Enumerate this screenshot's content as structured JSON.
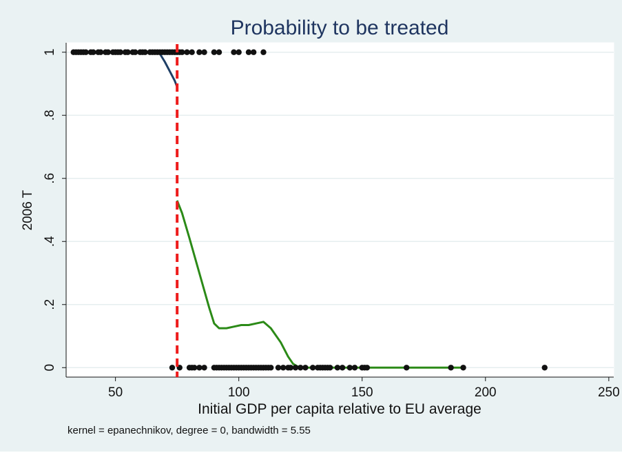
{
  "chart_data": {
    "type": "scatter",
    "title": "Probability to be treated",
    "xlabel": "Initial GDP per capita relative to EU average",
    "ylabel": "2006 T",
    "note": "kernel = epanechnikov, degree = 0, bandwidth = 5.55",
    "xlim": [
      30,
      252
    ],
    "ylim": [
      -0.03,
      1.03
    ],
    "xticks": [
      50,
      100,
      150,
      200,
      250
    ],
    "yticks": [
      0,
      0.2,
      0.4,
      0.6,
      0.8,
      1
    ],
    "ytick_labels": [
      "0",
      ".2",
      ".4",
      ".6",
      ".8",
      "1"
    ],
    "grid": true,
    "cutoff": 75,
    "colors": {
      "background": "#eaf2f3",
      "plot": "#ffffff",
      "grid": "#e6eeef",
      "points": "#111111",
      "left_fit": "#1f3f66",
      "right_fit": "#2b8a17",
      "cutoff_line": "#ee1c1c",
      "title": "#1f3560"
    },
    "series": [
      {
        "kind": "points",
        "x": [
          33,
          34,
          35,
          36,
          37,
          38,
          40,
          41,
          43,
          44,
          46,
          47,
          49,
          50,
          51,
          52,
          54,
          55,
          57,
          58,
          60,
          61,
          62,
          64,
          65,
          66,
          67,
          68,
          69,
          70,
          71,
          72,
          73,
          74,
          75,
          76,
          77,
          79,
          81,
          84,
          86,
          90,
          92,
          98,
          100,
          104,
          106,
          110
        ],
        "y": [
          1,
          1,
          1,
          1,
          1,
          1,
          1,
          1,
          1,
          1,
          1,
          1,
          1,
          1,
          1,
          1,
          1,
          1,
          1,
          1,
          1,
          1,
          1,
          1,
          1,
          1,
          1,
          1,
          1,
          1,
          1,
          1,
          1,
          1,
          1,
          1,
          1,
          1,
          1,
          1,
          1,
          1,
          1,
          1,
          1,
          1,
          1,
          1
        ]
      },
      {
        "kind": "points",
        "x": [
          73,
          76,
          80,
          81,
          82,
          84,
          86,
          90,
          91,
          92,
          93,
          94,
          95,
          96,
          97,
          98,
          99,
          100,
          101,
          102,
          103,
          104,
          105,
          106,
          107,
          108,
          109,
          110,
          111,
          112,
          113,
          116,
          118,
          120,
          121,
          123,
          125,
          127,
          130,
          132,
          133,
          134,
          135,
          136,
          137,
          140,
          142,
          145,
          147,
          150,
          151,
          152,
          168,
          186,
          191,
          224
        ],
        "y": [
          0,
          0,
          0,
          0,
          0,
          0,
          0,
          0,
          0,
          0,
          0,
          0,
          0,
          0,
          0,
          0,
          0,
          0,
          0,
          0,
          0,
          0,
          0,
          0,
          0,
          0,
          0,
          0,
          0,
          0,
          0,
          0,
          0,
          0,
          0,
          0,
          0,
          0,
          0,
          0,
          0,
          0,
          0,
          0,
          0,
          0,
          0,
          0,
          0,
          0,
          0,
          0,
          0,
          0,
          0,
          0
        ]
      },
      {
        "kind": "line",
        "x": [
          33,
          40,
          50,
          60,
          66,
          68,
          70,
          72,
          74,
          75
        ],
        "y": [
          1,
          1,
          1,
          1,
          1,
          0.995,
          0.97,
          0.94,
          0.91,
          0.89
        ]
      },
      {
        "kind": "line",
        "x": [
          75,
          77,
          80,
          84,
          88,
          90,
          92,
          95,
          98,
          101,
          104,
          107,
          110,
          113,
          117,
          120,
          122,
          124,
          126,
          130,
          140,
          150,
          160,
          170,
          180,
          191
        ],
        "y": [
          0.53,
          0.49,
          0.41,
          0.3,
          0.19,
          0.14,
          0.125,
          0.125,
          0.13,
          0.135,
          0.135,
          0.14,
          0.145,
          0.125,
          0.08,
          0.035,
          0.012,
          0.003,
          0,
          0,
          0,
          0,
          0,
          0,
          0,
          0
        ]
      }
    ]
  }
}
